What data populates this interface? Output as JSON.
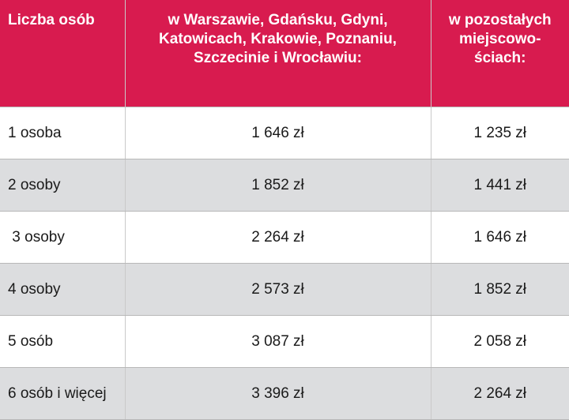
{
  "header": {
    "col1": "Liczba osób",
    "col2": "w Warszawie, Gdańsku, Gdyni, Katowicach, Krakowie, Poznaniu, Szczecinie i Wrocławiu:",
    "col3": "w pozostałych miejscowo-ściach:"
  },
  "rows": [
    {
      "label": "1 osoba",
      "city": "1 646 zł",
      "other": "1 235 zł"
    },
    {
      "label": "2 osoby",
      "city": "1 852 zł",
      "other": "1 441 zł"
    },
    {
      "label": " 3 osoby",
      "city": "2 264 zł",
      "other": "1 646 zł"
    },
    {
      "label": "4 osoby",
      "city": "2 573 zł",
      "other": "1 852 zł"
    },
    {
      "label": "5 osób",
      "city": "3 087 zł",
      "other": "2 058 zł"
    },
    {
      "label": "6 osób i więcej",
      "city": "3 396 zł",
      "other": "2 264 zł"
    }
  ],
  "colors": {
    "header_bg": "#d81b4f",
    "stripe_bg": "#dcdddf"
  }
}
